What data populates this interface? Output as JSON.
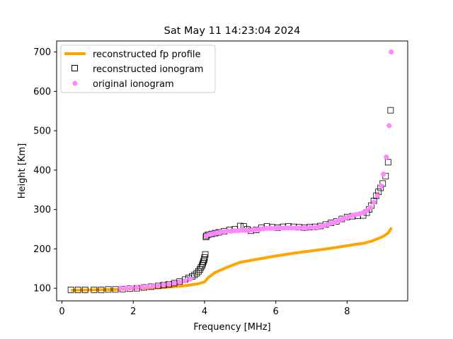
{
  "chart_data": {
    "type": "scatter",
    "title": "Sat May 11 14:23:04 2024",
    "xlabel": "Frequency [MHz]",
    "ylabel": "Height [Km]",
    "xlim": [
      -0.15,
      9.7
    ],
    "ylim": [
      68,
      728
    ],
    "xticks": [
      0,
      2,
      4,
      6,
      8
    ],
    "yticks": [
      100,
      200,
      300,
      400,
      500,
      600,
      700
    ],
    "grid": false,
    "legend_position": "upper-left",
    "series": [
      {
        "name": "reconstructed fp profile",
        "kind": "line",
        "color": "#FFA500",
        "x": [
          0.25,
          1.0,
          1.5,
          2.0,
          2.5,
          3.0,
          3.5,
          3.8,
          4.0,
          4.1,
          4.3,
          4.6,
          5.0,
          5.5,
          6.0,
          6.5,
          7.0,
          7.5,
          8.0,
          8.5,
          8.7,
          9.0,
          9.15,
          9.25
        ],
        "y": [
          95,
          96,
          97,
          99,
          101,
          103,
          107,
          111,
          116,
          127,
          140,
          152,
          166,
          174,
          182,
          189,
          195,
          201,
          208,
          215,
          220,
          231,
          240,
          254
        ]
      },
      {
        "name": "reconstructed ionogram",
        "kind": "marker-square-open",
        "color": "#000000",
        "x": [
          0.25,
          0.45,
          0.65,
          0.9,
          1.1,
          1.3,
          1.5,
          1.7,
          1.9,
          2.1,
          2.3,
          2.5,
          2.7,
          2.85,
          3.0,
          3.15,
          3.3,
          3.45,
          3.55,
          3.65,
          3.72,
          3.78,
          3.83,
          3.87,
          3.9,
          3.93,
          3.95,
          3.97,
          3.99,
          4.0,
          4.02,
          4.04,
          4.05,
          4.1,
          4.2,
          4.3,
          4.4,
          4.55,
          4.7,
          4.85,
          5.0,
          5.1,
          5.2,
          5.3,
          5.45,
          5.6,
          5.75,
          5.9,
          6.05,
          6.2,
          6.35,
          6.5,
          6.65,
          6.8,
          6.95,
          7.1,
          7.25,
          7.4,
          7.55,
          7.7,
          7.85,
          8.0,
          8.15,
          8.3,
          8.45,
          8.55,
          8.62,
          8.68,
          8.75,
          8.82,
          8.88,
          8.94,
          9.0,
          9.08,
          9.15,
          9.22
        ],
        "y": [
          96,
          96,
          96,
          96,
          96,
          97,
          97,
          98,
          99,
          100,
          102,
          104,
          106,
          108,
          110,
          113,
          117,
          122,
          126,
          130,
          134,
          138,
          143,
          148,
          153,
          158,
          163,
          168,
          173,
          178,
          186,
          230,
          233,
          236,
          238,
          240,
          242,
          245,
          248,
          250,
          258,
          257,
          250,
          246,
          248,
          254,
          257,
          255,
          254,
          256,
          257,
          256,
          255,
          254,
          255,
          256,
          258,
          262,
          266,
          270,
          276,
          281,
          283,
          284,
          285,
          292,
          300,
          310,
          322,
          335,
          345,
          355,
          366,
          385,
          420,
          552
        ]
      },
      {
        "name": "original ionogram",
        "kind": "marker-circle-filled",
        "color": "#FF88FF",
        "x": [
          1.65,
          1.8,
          1.95,
          2.1,
          2.25,
          2.4,
          2.55,
          2.7,
          2.85,
          3.0,
          3.15,
          3.3,
          3.45,
          3.6,
          4.05,
          4.15,
          4.25,
          4.35,
          4.45,
          4.55,
          4.65,
          4.75,
          4.85,
          4.95,
          5.05,
          5.15,
          5.25,
          5.35,
          5.45,
          5.55,
          5.65,
          5.75,
          5.85,
          5.95,
          6.05,
          6.15,
          6.25,
          6.35,
          6.45,
          6.55,
          6.65,
          6.75,
          6.85,
          6.95,
          7.05,
          7.15,
          7.25,
          7.35,
          7.45,
          7.55,
          7.65,
          7.75,
          7.85,
          7.95,
          8.05,
          8.15,
          8.25,
          8.35,
          8.45,
          8.55,
          8.65,
          8.75,
          8.85,
          8.95,
          9.02,
          9.1,
          9.18,
          9.24
        ],
        "y": [
          100,
          100,
          101,
          102,
          103,
          104,
          105,
          107,
          109,
          111,
          113,
          116,
          119,
          123,
          233,
          237,
          239,
          241,
          243,
          244,
          245,
          245,
          246,
          246,
          247,
          247,
          247,
          248,
          249,
          250,
          251,
          252,
          252,
          252,
          253,
          253,
          253,
          253,
          253,
          253,
          253,
          253,
          253,
          254,
          254,
          255,
          257,
          259,
          262,
          265,
          268,
          272,
          275,
          279,
          282,
          285,
          287,
          289,
          292,
          297,
          305,
          318,
          335,
          360,
          390,
          433,
          513,
          700
        ]
      }
    ]
  }
}
